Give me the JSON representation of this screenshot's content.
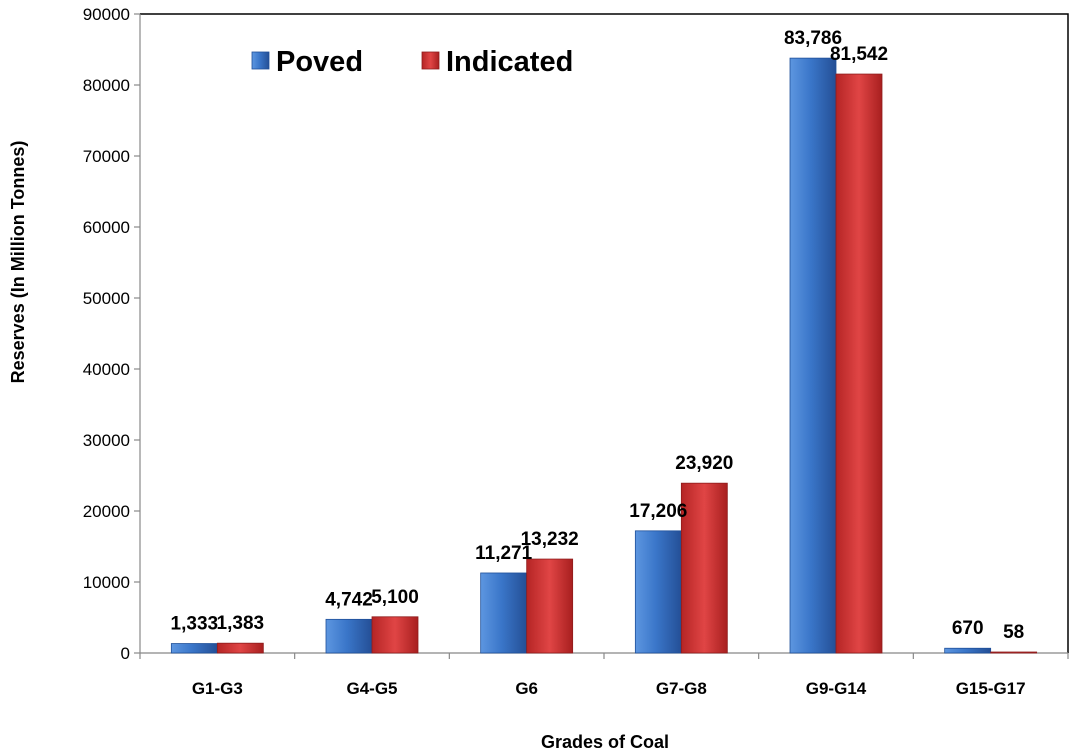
{
  "chart_data": {
    "type": "bar",
    "xlabel": "Grades of Coal",
    "ylabel": "Reserves (In Million Tonnes)",
    "categories": [
      "G1-G3",
      "G4-G5",
      "G6",
      "G7-G8",
      "G9-G14",
      "G15-G17"
    ],
    "series": [
      {
        "name": "Poved",
        "color": "#3a76c9",
        "values": [
          1333,
          4742,
          11271,
          17206,
          83786,
          670
        ],
        "labels": [
          "1,333",
          "4,742",
          "11,271",
          "17,206",
          "83,786",
          "670"
        ]
      },
      {
        "name": "Indicated",
        "color": "#d83a3a",
        "values": [
          1383,
          5100,
          13232,
          23920,
          81542,
          58
        ],
        "labels": [
          "1,383",
          "5,100",
          "13,232",
          "23,920",
          "81,542",
          "58"
        ]
      }
    ],
    "ylim": [
      0,
      90000
    ],
    "yticks": [
      0,
      10000,
      20000,
      30000,
      40000,
      50000,
      60000,
      70000,
      80000,
      90000
    ],
    "ytick_labels": [
      "0",
      "10000",
      "20000",
      "30000",
      "40000",
      "50000",
      "60000",
      "70000",
      "80000",
      "90000"
    ],
    "legend_position": "top-left",
    "grid": false
  }
}
